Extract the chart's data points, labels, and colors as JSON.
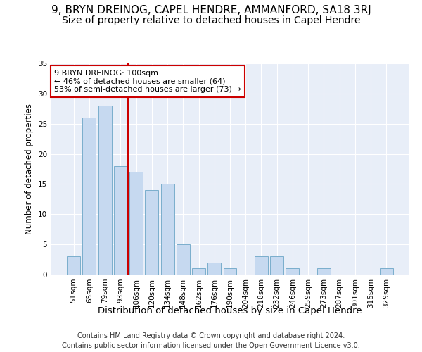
{
  "title": "9, BRYN DREINOG, CAPEL HENDRE, AMMANFORD, SA18 3RJ",
  "subtitle": "Size of property relative to detached houses in Capel Hendre",
  "xlabel": "Distribution of detached houses by size in Capel Hendre",
  "ylabel": "Number of detached properties",
  "categories": [
    "51sqm",
    "65sqm",
    "79sqm",
    "93sqm",
    "106sqm",
    "120sqm",
    "134sqm",
    "148sqm",
    "162sqm",
    "176sqm",
    "190sqm",
    "204sqm",
    "218sqm",
    "232sqm",
    "246sqm",
    "259sqm",
    "273sqm",
    "287sqm",
    "301sqm",
    "315sqm",
    "329sqm"
  ],
  "values": [
    3,
    26,
    28,
    18,
    17,
    14,
    15,
    5,
    1,
    2,
    1,
    0,
    3,
    3,
    1,
    0,
    1,
    0,
    0,
    0,
    1
  ],
  "bar_color": "#c6d9f0",
  "bar_edge_color": "#7aaecc",
  "vline_x": 4.0,
  "vline_color": "#cc0000",
  "annotation_text": "9 BRYN DREINOG: 100sqm\n← 46% of detached houses are smaller (64)\n53% of semi-detached houses are larger (73) →",
  "annotation_box_color": "#ffffff",
  "annotation_box_edge_color": "#cc0000",
  "ylim": [
    0,
    35
  ],
  "yticks": [
    0,
    5,
    10,
    15,
    20,
    25,
    30,
    35
  ],
  "background_color": "#e8eef8",
  "footer_line1": "Contains HM Land Registry data © Crown copyright and database right 2024.",
  "footer_line2": "Contains public sector information licensed under the Open Government Licence v3.0.",
  "title_fontsize": 11,
  "subtitle_fontsize": 10,
  "xlabel_fontsize": 9.5,
  "ylabel_fontsize": 8.5,
  "tick_fontsize": 7.5,
  "annotation_fontsize": 8,
  "footer_fontsize": 7
}
